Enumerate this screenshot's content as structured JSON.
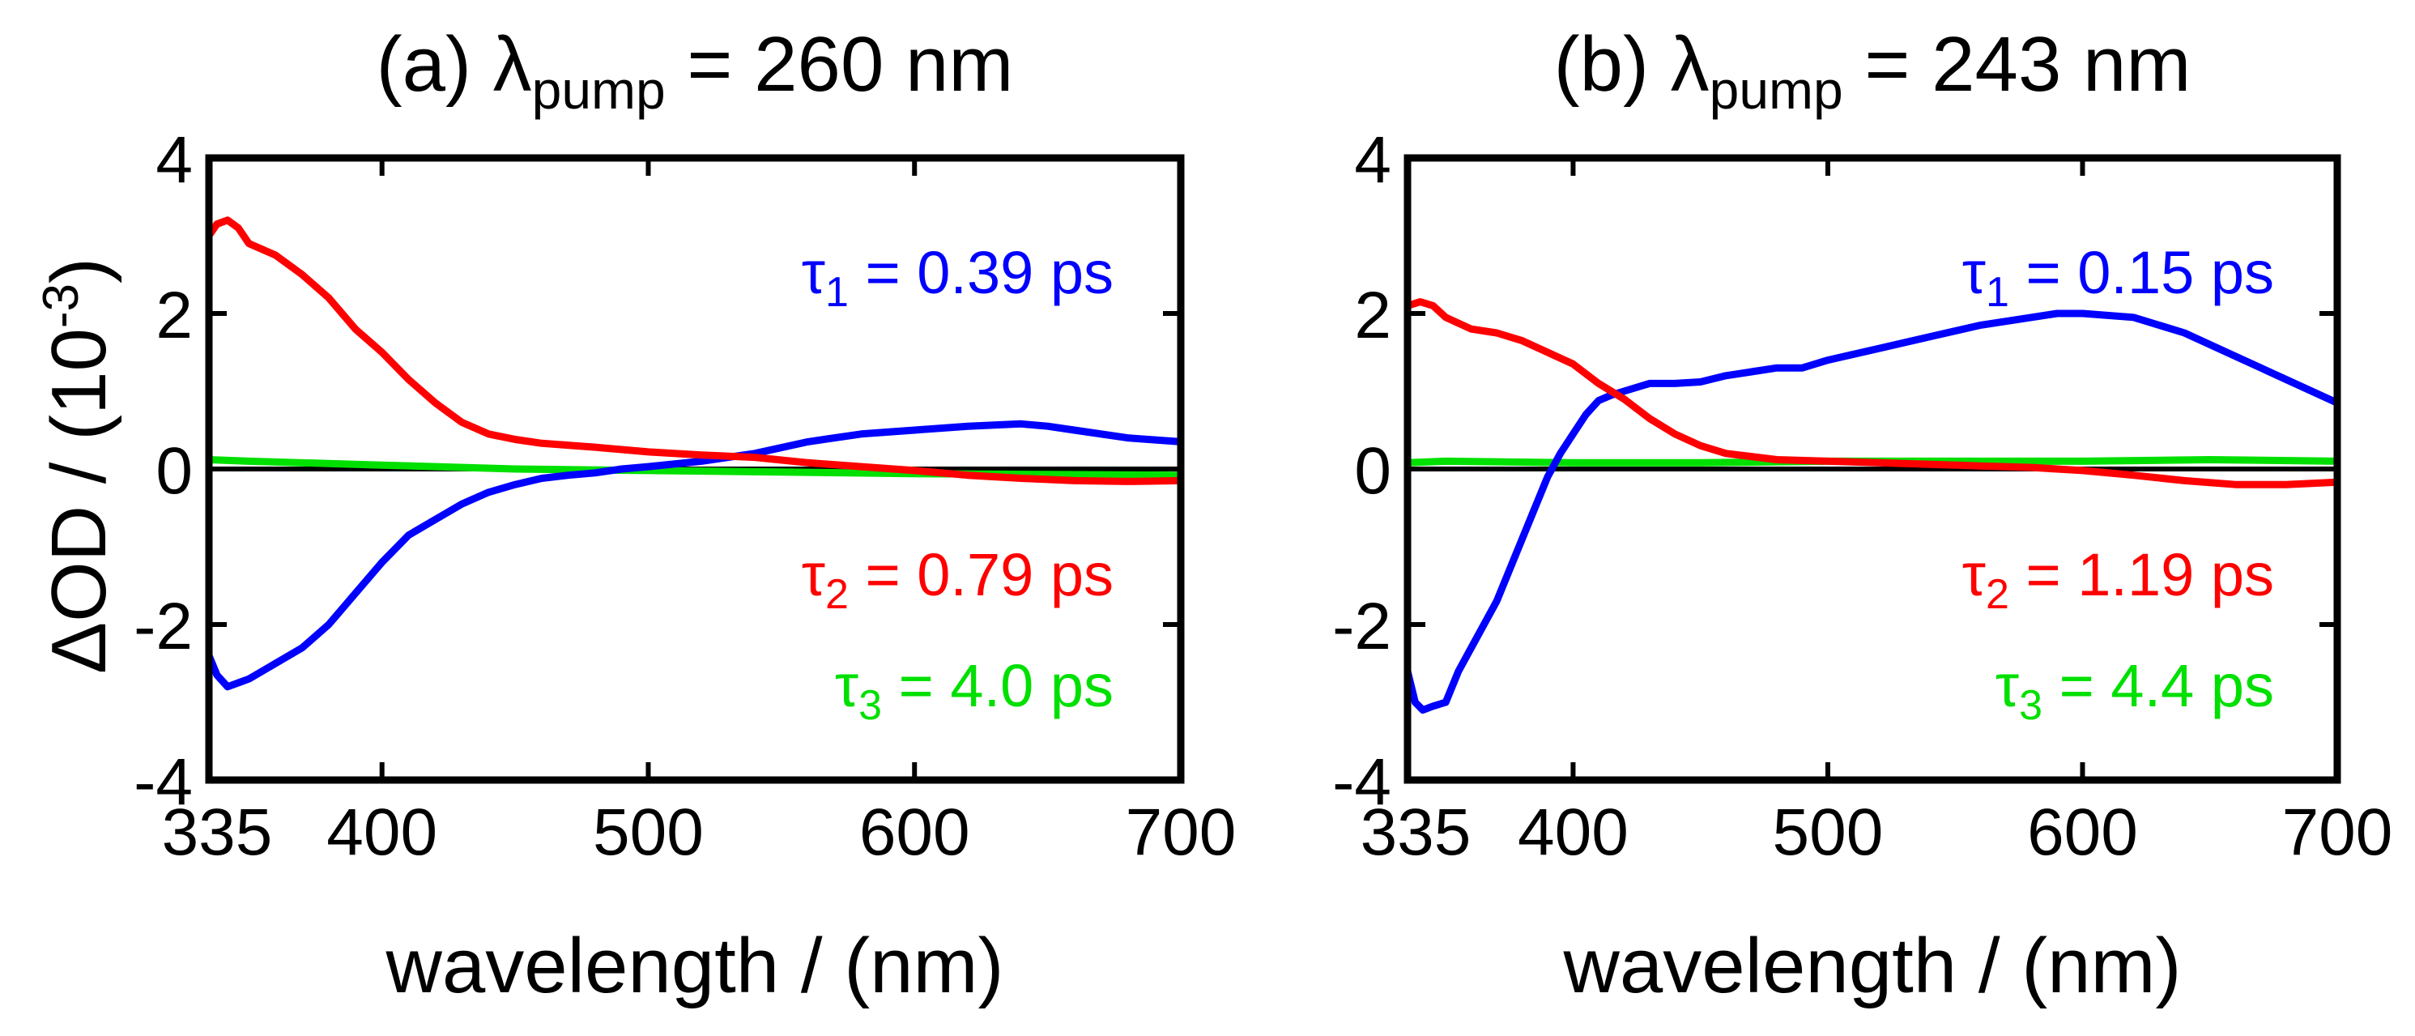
{
  "colors": {
    "tau1": "#0000ff",
    "tau2": "#ff0000",
    "tau3": "#00e000",
    "axes": "#000000"
  },
  "shared": {
    "ylabel": "ΔOD / (10",
    "ylabel_exp": "-3",
    "ylabel_tail": ")",
    "xlabel": "wavelength / (nm)",
    "lambda": "λ",
    "pump_sub": "pump",
    "tau_char": "τ"
  },
  "chart_data": [
    {
      "type": "line",
      "title_prefix": "(a) ",
      "title_suffix": " = 260 nm",
      "xlabel": "wavelength / (nm)",
      "ylabel": "ΔOD / (10^-3)",
      "xlim": [
        335,
        700
      ],
      "ylim": [
        -4,
        4
      ],
      "xticks": [
        335,
        400,
        500,
        600,
        700
      ],
      "yticks": [
        4,
        2,
        0,
        -2,
        -4
      ],
      "annotations": [
        {
          "sub": "1",
          "text": " = 0.39 ps",
          "series": "tau1"
        },
        {
          "sub": "2",
          "text": " = 0.79 ps",
          "series": "tau2"
        },
        {
          "sub": "3",
          "text": " = 4.0   ps",
          "series": "tau3"
        }
      ],
      "series": [
        {
          "name": "tau1",
          "color": "#0000ff",
          "x": [
            335,
            338,
            342,
            346,
            350,
            360,
            370,
            380,
            390,
            400,
            410,
            420,
            430,
            440,
            450,
            460,
            470,
            480,
            490,
            500,
            520,
            540,
            560,
            580,
            600,
            620,
            640,
            650,
            660,
            680,
            700
          ],
          "y": [
            -2.4,
            -2.65,
            -2.8,
            -2.75,
            -2.7,
            -2.5,
            -2.3,
            -2.0,
            -1.6,
            -1.2,
            -0.85,
            -0.65,
            -0.45,
            -0.3,
            -0.2,
            -0.12,
            -0.08,
            -0.05,
            0.0,
            0.03,
            0.1,
            0.2,
            0.35,
            0.45,
            0.5,
            0.55,
            0.58,
            0.55,
            0.5,
            0.4,
            0.35
          ]
        },
        {
          "name": "tau2",
          "color": "#ff0000",
          "x": [
            335,
            338,
            342,
            346,
            350,
            360,
            370,
            380,
            390,
            400,
            410,
            420,
            430,
            440,
            450,
            460,
            480,
            500,
            520,
            540,
            560,
            580,
            600,
            620,
            640,
            660,
            680,
            700
          ],
          "y": [
            3.0,
            3.15,
            3.2,
            3.1,
            2.9,
            2.75,
            2.5,
            2.2,
            1.8,
            1.5,
            1.15,
            0.85,
            0.6,
            0.45,
            0.38,
            0.33,
            0.28,
            0.22,
            0.18,
            0.15,
            0.08,
            0.03,
            -0.02,
            -0.08,
            -0.12,
            -0.15,
            -0.16,
            -0.15
          ]
        },
        {
          "name": "tau3",
          "color": "#00e000",
          "x": [
            335,
            350,
            400,
            450,
            500,
            550,
            600,
            650,
            700
          ],
          "y": [
            0.12,
            0.1,
            0.05,
            0.0,
            -0.02,
            -0.04,
            -0.06,
            -0.07,
            -0.08
          ]
        }
      ]
    },
    {
      "type": "line",
      "title_prefix": "(b) ",
      "title_suffix": " = 243 nm",
      "xlabel": "wavelength / (nm)",
      "ylabel": "ΔOD / (10^-3)",
      "xlim": [
        335,
        700
      ],
      "ylim": [
        -4,
        4
      ],
      "xticks": [
        335,
        400,
        500,
        600,
        700
      ],
      "yticks": [
        4,
        2,
        0,
        -2,
        -4
      ],
      "annotations": [
        {
          "sub": "1",
          "text": " = 0.15 ps",
          "series": "tau1"
        },
        {
          "sub": "2",
          "text": " = 1.19 ps",
          "series": "tau2"
        },
        {
          "sub": "3",
          "text": " = 4.4   ps",
          "series": "tau3"
        }
      ],
      "series": [
        {
          "name": "tau1",
          "color": "#0000ff",
          "x": [
            335,
            338,
            341,
            345,
            350,
            355,
            360,
            370,
            380,
            390,
            395,
            400,
            405,
            410,
            415,
            420,
            430,
            440,
            450,
            460,
            470,
            480,
            490,
            500,
            520,
            540,
            560,
            580,
            590,
            600,
            620,
            640,
            660,
            680,
            700
          ],
          "y": [
            -2.6,
            -3.0,
            -3.1,
            -3.05,
            -3.0,
            -2.6,
            -2.3,
            -1.7,
            -0.9,
            -0.1,
            0.2,
            0.45,
            0.7,
            0.88,
            0.95,
            1.0,
            1.1,
            1.1,
            1.12,
            1.2,
            1.25,
            1.3,
            1.3,
            1.4,
            1.55,
            1.7,
            1.85,
            1.95,
            2.0,
            2.0,
            1.95,
            1.75,
            1.45,
            1.15,
            0.85
          ]
        },
        {
          "name": "tau2",
          "color": "#ff0000",
          "x": [
            335,
            340,
            345,
            350,
            360,
            370,
            380,
            390,
            400,
            410,
            420,
            430,
            440,
            450,
            460,
            480,
            500,
            520,
            540,
            560,
            580,
            600,
            620,
            640,
            660,
            680,
            700
          ],
          "y": [
            2.1,
            2.15,
            2.1,
            1.95,
            1.8,
            1.75,
            1.65,
            1.5,
            1.35,
            1.1,
            0.9,
            0.65,
            0.45,
            0.3,
            0.2,
            0.12,
            0.1,
            0.08,
            0.06,
            0.04,
            0.02,
            -0.02,
            -0.08,
            -0.15,
            -0.2,
            -0.2,
            -0.17
          ]
        },
        {
          "name": "tau3",
          "color": "#00e000",
          "x": [
            335,
            350,
            400,
            450,
            500,
            550,
            600,
            650,
            700
          ],
          "y": [
            0.08,
            0.1,
            0.08,
            0.08,
            0.1,
            0.1,
            0.1,
            0.12,
            0.1
          ]
        }
      ]
    }
  ]
}
